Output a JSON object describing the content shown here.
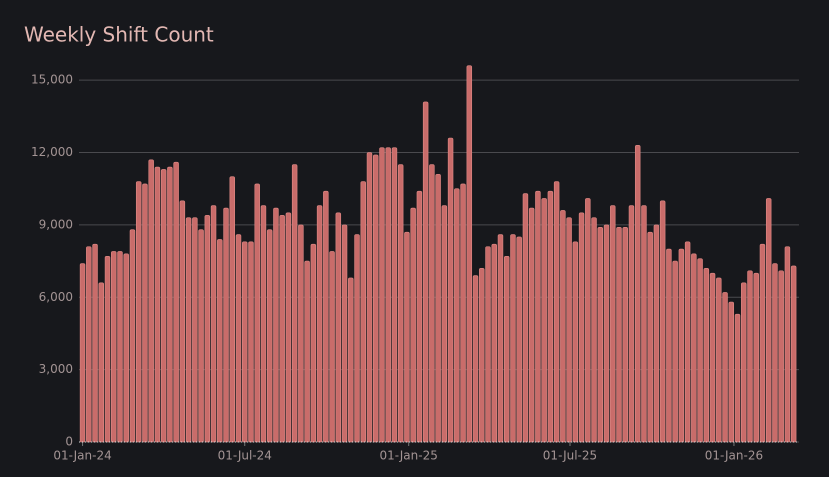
{
  "chart_data": {
    "type": "bar",
    "title": "Weekly Shift Count",
    "color": "#c96c6a",
    "grid": true,
    "x": [
      "2024-01-01",
      "2024-01-08",
      "2024-01-15",
      "2024-01-22",
      "2024-01-29",
      "2024-02-05",
      "2024-02-12",
      "2024-02-19",
      "2024-02-26",
      "2024-03-04",
      "2024-03-11",
      "2024-03-18",
      "2024-03-25",
      "2024-04-01",
      "2024-04-08",
      "2024-04-15",
      "2024-04-22",
      "2024-04-29",
      "2024-05-06",
      "2024-05-13",
      "2024-05-20",
      "2024-05-27",
      "2024-06-03",
      "2024-06-10",
      "2024-06-17",
      "2024-06-24",
      "2024-07-01",
      "2024-07-08",
      "2024-07-15",
      "2024-07-22",
      "2024-07-29",
      "2024-08-05",
      "2024-08-12",
      "2024-08-19",
      "2024-08-26",
      "2024-09-02",
      "2024-09-09",
      "2024-09-16",
      "2024-09-23",
      "2024-09-30",
      "2024-10-07",
      "2024-10-14",
      "2024-10-21",
      "2024-10-28",
      "2024-11-04",
      "2024-11-11",
      "2024-11-18",
      "2024-11-25",
      "2024-12-02",
      "2024-12-09",
      "2024-12-16",
      "2024-12-23",
      "2024-12-30",
      "2025-01-06",
      "2025-01-13",
      "2025-01-20",
      "2025-01-27",
      "2025-02-03",
      "2025-02-10",
      "2025-02-17",
      "2025-02-24",
      "2025-03-03",
      "2025-03-10",
      "2025-03-17",
      "2025-03-24",
      "2025-03-31",
      "2025-04-07",
      "2025-04-14",
      "2025-04-21",
      "2025-04-28",
      "2025-05-05",
      "2025-05-12",
      "2025-05-19",
      "2025-05-26",
      "2025-06-02",
      "2025-06-09",
      "2025-06-16",
      "2025-06-23",
      "2025-06-30",
      "2025-07-07",
      "2025-07-14",
      "2025-07-21",
      "2025-07-28",
      "2025-08-04",
      "2025-08-11",
      "2025-08-18",
      "2025-08-25",
      "2025-09-01",
      "2025-09-08",
      "2025-09-15",
      "2025-09-22",
      "2025-09-29",
      "2025-10-06",
      "2025-10-13",
      "2025-10-20",
      "2025-10-27",
      "2025-11-03",
      "2025-11-10",
      "2025-11-17",
      "2025-11-24",
      "2025-12-01",
      "2025-12-08",
      "2025-12-15",
      "2025-12-22",
      "2025-12-29",
      "2026-01-05",
      "2026-01-12",
      "2026-01-19",
      "2026-01-26",
      "2026-02-02",
      "2026-02-09",
      "2026-02-16",
      "2026-02-23",
      "2026-03-02",
      "2026-03-09"
    ],
    "values": [
      7400,
      8100,
      8200,
      6600,
      7700,
      7900,
      7900,
      7800,
      8800,
      10800,
      10700,
      11700,
      11400,
      11300,
      11400,
      11600,
      10000,
      9300,
      9300,
      8800,
      9400,
      9800,
      8400,
      9700,
      11000,
      8600,
      8300,
      8300,
      10700,
      9800,
      8800,
      9700,
      9400,
      9500,
      11500,
      9000,
      7500,
      8200,
      9800,
      10400,
      7900,
      9500,
      9000,
      6800,
      8600,
      10800,
      12000,
      11900,
      12200,
      12200,
      12200,
      11500,
      8700,
      9700,
      10400,
      14100,
      11500,
      11100,
      9800,
      12600,
      10500,
      10700,
      15600,
      6900,
      7200,
      8100,
      8200,
      8600,
      7700,
      8600,
      8500,
      10300,
      9700,
      10400,
      10100,
      10400,
      10800,
      9600,
      9300,
      8300,
      9500,
      10100,
      9300,
      8900,
      9000,
      9800,
      8900,
      8900,
      9800,
      12300,
      9800,
      8700,
      9000,
      10000,
      8000,
      7500,
      8000,
      8300,
      7800,
      7600,
      7200,
      7000,
      6800,
      6200,
      5800,
      5300,
      6600,
      7100,
      7000,
      8200,
      10100,
      7400,
      7100,
      8100,
      7300
    ],
    "xlim": [
      "2023-12-28",
      "2026-03-15"
    ],
    "xticks": [
      {
        "value": "2024-01-01",
        "label": "01-Jan-24"
      },
      {
        "value": "2024-07-01",
        "label": "01-Jul-24"
      },
      {
        "value": "2025-01-01",
        "label": "01-Jan-25"
      },
      {
        "value": "2025-07-01",
        "label": "01-Jul-25"
      },
      {
        "value": "2026-01-01",
        "label": "01-Jan-26"
      }
    ],
    "ylim": [
      0,
      16500
    ],
    "yticks": [
      0,
      {
        "value": 3000,
        "label": "3,000"
      },
      {
        "value": 6000,
        "label": "6,000"
      },
      {
        "value": 9000,
        "label": "9,000"
      },
      {
        "value": 12000,
        "label": "12,000"
      },
      {
        "value": 15000,
        "label": "15,000"
      }
    ]
  }
}
